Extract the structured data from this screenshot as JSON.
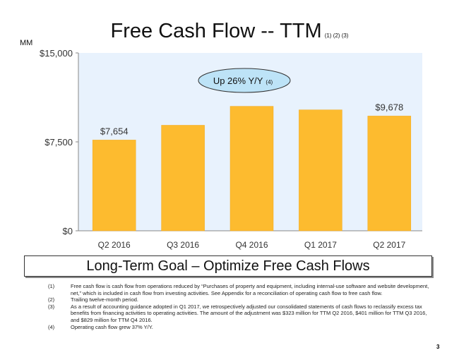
{
  "title": "Free Cash Flow -- TTM",
  "title_notes": "(1) (2) (3)",
  "unit": "MM",
  "callout": {
    "text": "Up 26% Y/Y",
    "note": "(4)"
  },
  "goal": "Long-Term Goal – Optimize Free Cash Flows",
  "footnotes": [
    {
      "n": "(1)",
      "text": "Free cash flow is cash flow from operations reduced by “Purchases of property and equipment, including internal-use software and website development, net,” which is included in cash flow from investing activities. See Appendix for a reconciliation of operating cash flow to free cash flow."
    },
    {
      "n": "(2)",
      "text": "Trailing twelve-month period."
    },
    {
      "n": "(3)",
      "text": "As a result of accounting guidance adopted in Q1 2017, we retrospectively adjusted our consolidated statements of cash flows to reclassify excess tax benefits from financing activities to operating activities. The amount of the adjustment was $323 million for TTM Q2 2016, $401 million for TTM Q3 2016, and $829 million for TTM Q4 2016."
    },
    {
      "n": "(4)",
      "text": "Operating cash flow grew 37% Y/Y."
    }
  ],
  "page_number": "3",
  "colors": {
    "bar": "#FDBB2F",
    "plot_bg": "#E8F2FD",
    "callout": "#BDE3F7"
  },
  "chart_data": {
    "type": "bar",
    "title": "Free Cash Flow -- TTM",
    "ylabel": "MM",
    "categories": [
      "Q2 2016",
      "Q3 2016",
      "Q4 2016",
      "Q1 2017",
      "Q2 2017"
    ],
    "values": [
      7654,
      8900,
      10500,
      10200,
      9678
    ],
    "data_labels": [
      "$7,654",
      "",
      "",
      "",
      "$9,678"
    ],
    "ylim": [
      0,
      15000
    ],
    "yticks": [
      {
        "v": 0,
        "label": "$0"
      },
      {
        "v": 7500,
        "label": "$7,500"
      },
      {
        "v": 15000,
        "label": "$15,000"
      }
    ],
    "grid": false,
    "legend": "none"
  }
}
